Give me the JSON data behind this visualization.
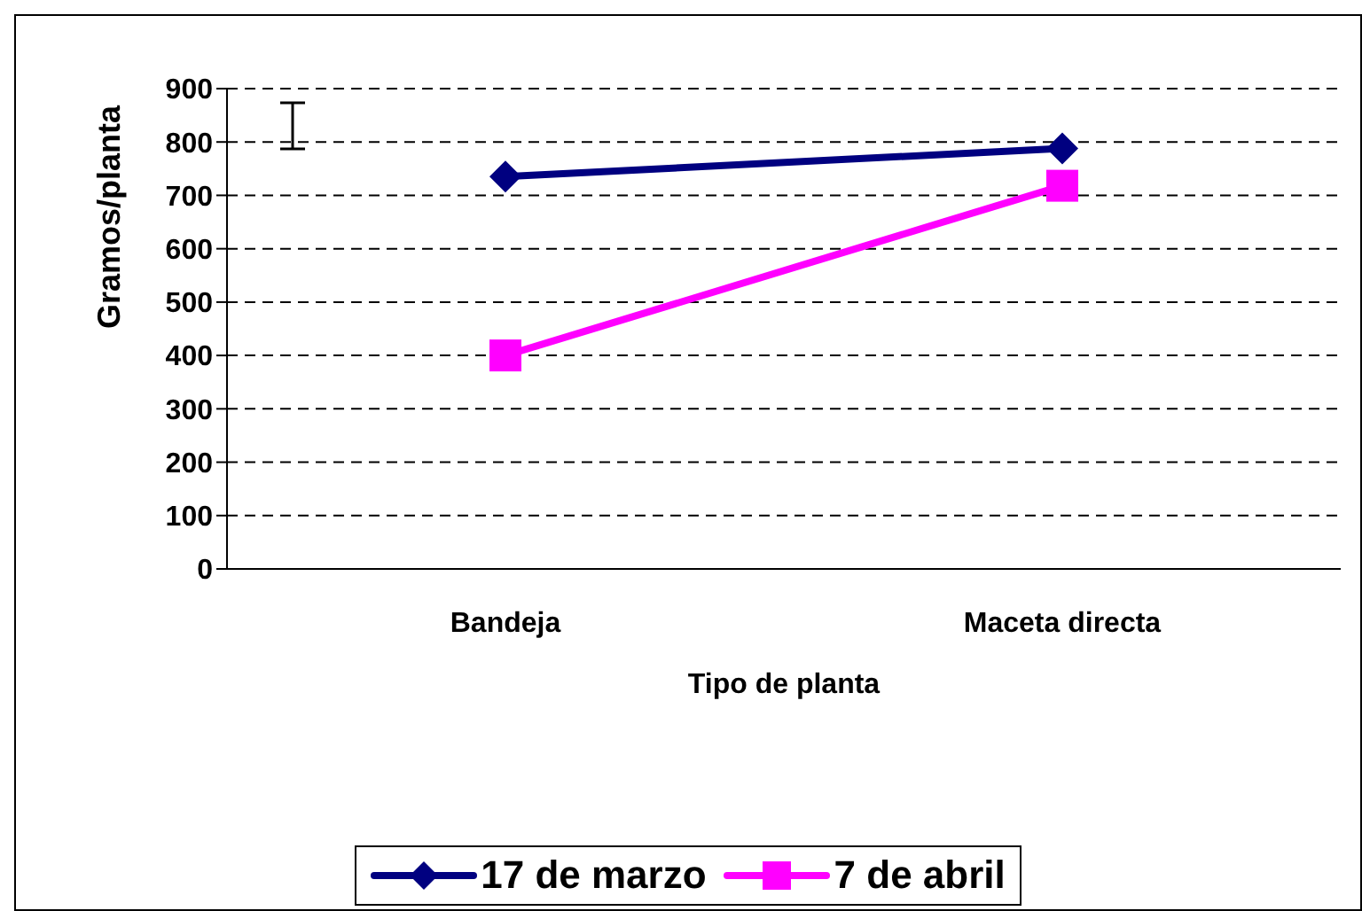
{
  "chart_data": {
    "type": "line",
    "xlabel": "Tipo de planta",
    "ylabel": "Gramos/planta",
    "categories": [
      "Bandeja",
      "Maceta directa"
    ],
    "series": [
      {
        "name": "17 de marzo",
        "color": "#000080",
        "values": [
          735,
          788
        ],
        "marker": "diamond"
      },
      {
        "name": "7 de abril",
        "color": "#ff00ff",
        "values": [
          400,
          718
        ],
        "marker": "square"
      }
    ],
    "ylim": [
      0,
      900
    ],
    "yticks": [
      0,
      100,
      200,
      300,
      400,
      500,
      600,
      700,
      800,
      900
    ],
    "grid": "y",
    "legend": "bottom"
  }
}
